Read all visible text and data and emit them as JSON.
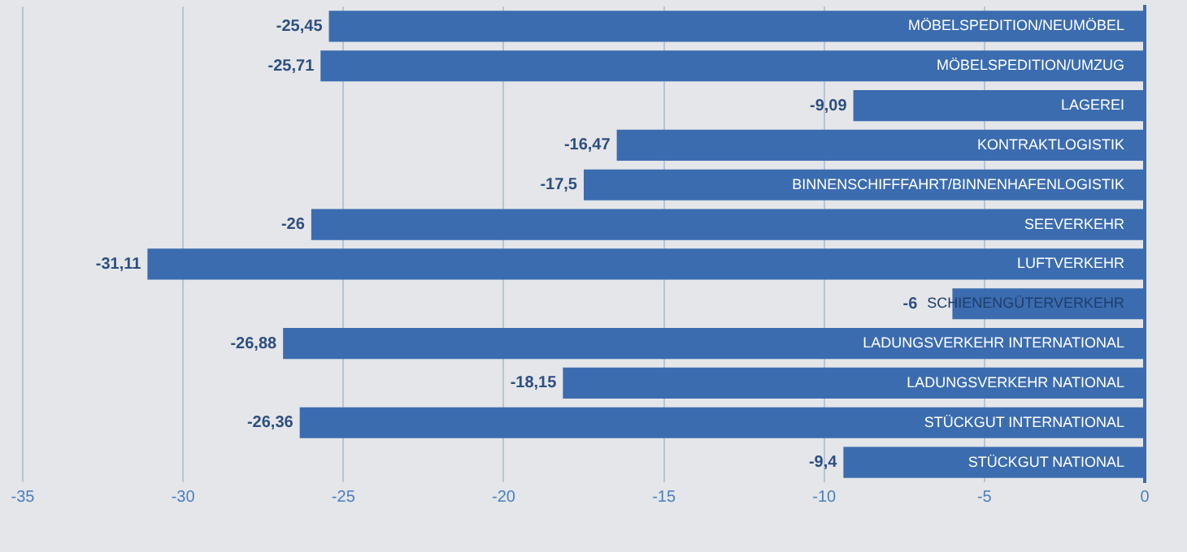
{
  "chart_data": {
    "type": "bar",
    "orientation": "horizontal",
    "categories": [
      "MÖBELSPEDITION/NEUMÖBEL",
      "MÖBELSPEDITION/UMZUG",
      "LAGEREI",
      "KONTRAKTLOGISTIK",
      "BINNENSCHIFFFAHRT/BINNENHAFENLOGISTIK",
      "SEEVERKEHR",
      "LUFTVERKEHR",
      "SCHIENENGÜTERVERKEHR",
      "LADUNGSVERKEHR INTERNATIONAL",
      "LADUNGSVERKEHR NATIONAL",
      "STÜCKGUT INTERNATIONAL",
      "STÜCKGUT NATIONAL"
    ],
    "values": [
      -25.45,
      -25.71,
      -9.09,
      -16.47,
      -17.5,
      -26,
      -31.11,
      -6,
      -26.88,
      -18.15,
      -26.36,
      -9.4
    ],
    "value_labels": [
      "-25,45",
      "-25,71",
      "-9,09",
      "-16,47",
      "-17,5",
      "-26",
      "-31,11",
      "-6",
      "-26,88",
      "-18,15",
      "-26,36",
      "-9,4"
    ],
    "color": "#3b6cb0",
    "xlim": [
      -35,
      0
    ],
    "xticks": [
      -35,
      -30,
      -25,
      -20,
      -15,
      -10,
      -5,
      0
    ],
    "grid": "x",
    "tick_labels": "x"
  }
}
